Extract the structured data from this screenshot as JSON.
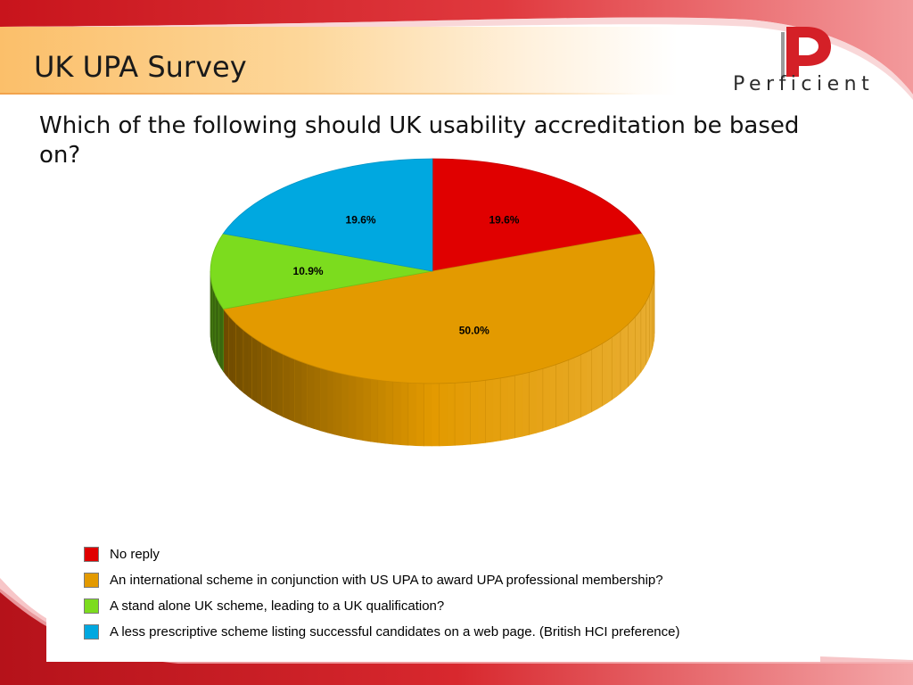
{
  "slide": {
    "title": "UK UPA Survey",
    "question": "Which of the following should UK usability accreditation be based on?",
    "logo_wordmark": "Perficient"
  },
  "colors": {
    "accent_red": "#d42027",
    "title_band": "#fbbf6a"
  },
  "chart_data": {
    "type": "pie",
    "style": "3d",
    "legend_position": "bottom",
    "slices": [
      {
        "name": "No reply",
        "value": 19.6,
        "label": "19.6%",
        "color": "#e00000"
      },
      {
        "name": "An international scheme in conjunction with US UPA to award UPA professional membership?",
        "value": 50.0,
        "label": "50.0%",
        "color": "#e39a00"
      },
      {
        "name": "A stand alone UK scheme, leading to a UK qualification?",
        "value": 10.9,
        "label": "10.9%",
        "color": "#7cdc1e"
      },
      {
        "name": "A less prescriptive scheme listing successful candidates on a web page. (British HCI preference)",
        "value": 19.6,
        "label": "19.6%",
        "color": "#00a8e0"
      }
    ]
  }
}
